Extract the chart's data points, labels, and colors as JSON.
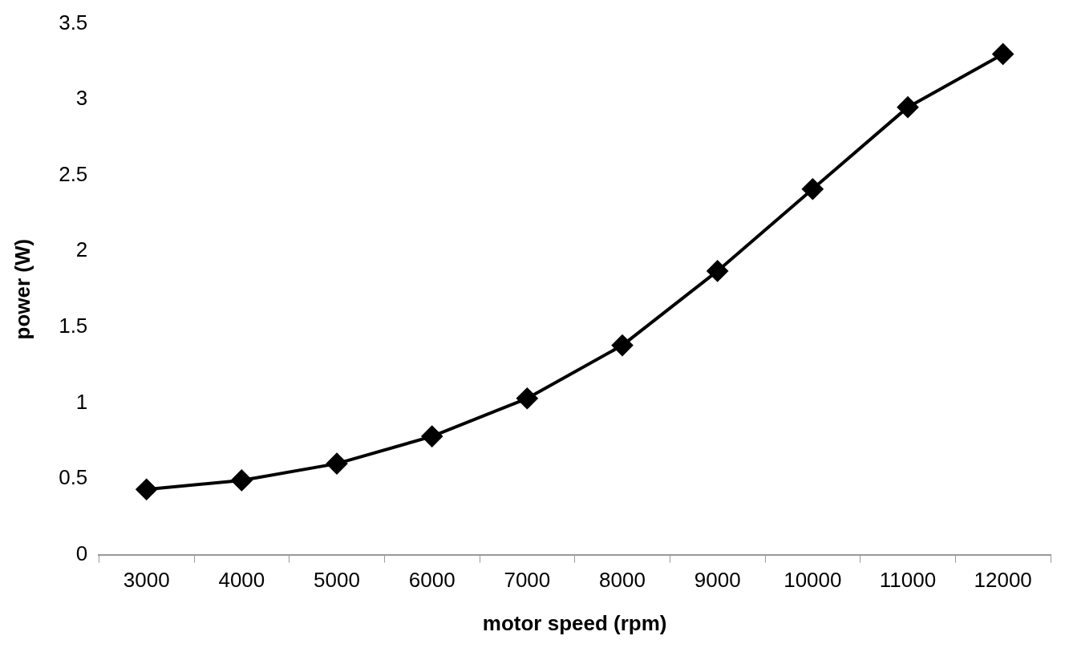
{
  "chart_data": {
    "type": "line",
    "xlabel": "motor speed (rpm)",
    "ylabel": "power (W)",
    "categories": [
      "3000",
      "4000",
      "5000",
      "6000",
      "7000",
      "8000",
      "9000",
      "10000",
      "11000",
      "12000"
    ],
    "series": [
      {
        "color": "#000000",
        "values": [
          0.43,
          0.49,
          0.6,
          0.78,
          1.03,
          1.38,
          1.87,
          2.41,
          2.95,
          3.3
        ]
      }
    ],
    "ylim": [
      0,
      3.5
    ],
    "yticks": [
      0,
      0.5,
      1,
      1.5,
      2,
      2.5,
      3,
      3.5
    ],
    "grid": false,
    "marker": "diamond",
    "line_style": "solid"
  }
}
